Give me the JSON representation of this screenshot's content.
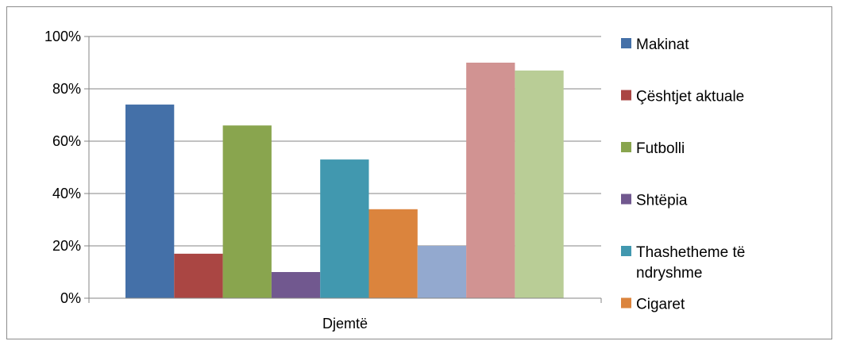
{
  "chart_data": {
    "type": "bar",
    "categories": [
      "Djemtë"
    ],
    "ylim": [
      0,
      100
    ],
    "yticks": [
      "0%",
      "20%",
      "40%",
      "60%",
      "80%",
      "100%"
    ],
    "grid": true,
    "legend_position": "right",
    "series": [
      {
        "name": "Makinat",
        "values": [
          74
        ],
        "color": "#4470A8"
      },
      {
        "name": "Çështjet aktuale",
        "values": [
          17
        ],
        "color": "#AA4643"
      },
      {
        "name": "Futbolli",
        "values": [
          66
        ],
        "color": "#89A54E"
      },
      {
        "name": "Shtëpia",
        "values": [
          10
        ],
        "color": "#71588F"
      },
      {
        "name": "Thashetheme të ndryshme",
        "values": [
          53
        ],
        "color": "#4198AF"
      },
      {
        "name": "Cigaret",
        "values": [
          34
        ],
        "color": "#DB843D"
      },
      {
        "name": "",
        "values": [
          20
        ],
        "color": "#93A9CF"
      },
      {
        "name": "",
        "values": [
          90
        ],
        "color": "#D19392"
      },
      {
        "name": "",
        "values": [
          87
        ],
        "color": "#B9CD96"
      }
    ]
  }
}
